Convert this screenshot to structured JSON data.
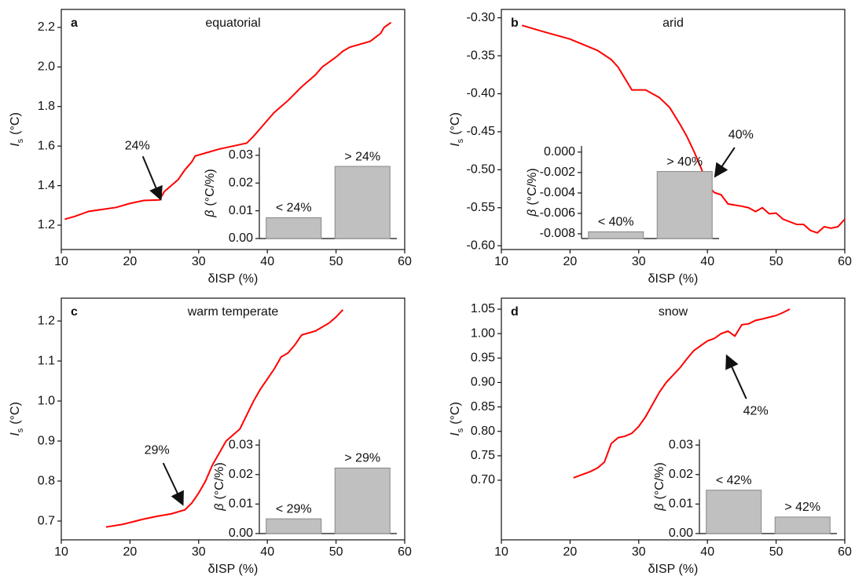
{
  "chart_data": [
    {
      "type": "line",
      "label": "a",
      "title": "equatorial",
      "x_label": "δISP (%)",
      "y_label": {
        "symbol": "I",
        "subscript": "s",
        "unit": "(°C)"
      },
      "xlim": [
        10,
        60
      ],
      "xticks": [
        10,
        20,
        30,
        40,
        50,
        60
      ],
      "ylim": [
        1.077,
        2.291
      ],
      "yticks": [
        1.2,
        1.4,
        1.6,
        1.8,
        {
          "value": 2,
          "label": "2.0"
        },
        2.2
      ],
      "color": "#ff0000",
      "x": [
        10.5,
        12,
        14,
        16,
        18,
        20,
        22,
        24.3,
        25,
        27,
        28,
        29,
        29.5,
        31,
        33,
        35,
        37,
        38,
        39,
        40,
        41,
        43,
        45,
        47,
        48,
        50,
        51,
        52,
        55,
        56.5,
        57,
        58
      ],
      "values": [
        1.23,
        1.245,
        1.27,
        1.28,
        1.29,
        1.31,
        1.325,
        1.328,
        1.37,
        1.43,
        1.48,
        1.52,
        1.55,
        1.565,
        1.585,
        1.6,
        1.615,
        1.65,
        1.69,
        1.73,
        1.77,
        1.83,
        1.9,
        1.96,
        2.0,
        2.05,
        2.08,
        2.1,
        2.13,
        2.17,
        2.2,
        2.225
      ],
      "annotation": {
        "text": "24%",
        "x": 24.5,
        "y": 1.33
      }
    },
    {
      "type": "bar",
      "y_label": {
        "symbol": "β",
        "unit": "(°C/%)"
      },
      "ylim": [
        0,
        0.0328
      ],
      "yticks": [
        {
          "value": 0,
          "label": "0.00"
        },
        {
          "value": 0.01,
          "label": "0.01"
        },
        {
          "value": 0.02,
          "label": "0.02"
        },
        {
          "value": 0.03,
          "label": "0.03"
        }
      ],
      "color": "#c0c0c0",
      "categories": [
        "< 24%",
        "> 24%"
      ],
      "values": [
        0.0075,
        0.026
      ]
    },
    {
      "type": "line",
      "label": "b",
      "title": "arid",
      "x_label": "δISP (%)",
      "y_label": {
        "symbol": "I",
        "subscript": "s",
        "unit": "(°C)"
      },
      "xlim": [
        10,
        60
      ],
      "xticks": [
        10,
        20,
        30,
        40,
        50,
        60
      ],
      "ylim": [
        -0.605,
        -0.289
      ],
      "yticks": [
        {
          "value": -0.6,
          "label": "-0.60"
        },
        {
          "value": -0.55,
          "label": "-0.55"
        },
        {
          "value": -0.5,
          "label": "-0.50"
        },
        {
          "value": -0.45,
          "label": "-0.45"
        },
        {
          "value": -0.4,
          "label": "-0.40"
        },
        {
          "value": -0.35,
          "label": "-0.35"
        },
        {
          "value": -0.3,
          "label": "-0.30"
        }
      ],
      "color": "#ff0000",
      "x": [
        13,
        16,
        20,
        24,
        26,
        27,
        29,
        31,
        33,
        34.5,
        36,
        37,
        38,
        39,
        40,
        41,
        42,
        43,
        45,
        46,
        47,
        48,
        49,
        50,
        51,
        53,
        54,
        55,
        56,
        57,
        58,
        59,
        60
      ],
      "values": [
        -0.31,
        -0.318,
        -0.328,
        -0.343,
        -0.355,
        -0.365,
        -0.395,
        -0.395,
        -0.405,
        -0.418,
        -0.44,
        -0.456,
        -0.475,
        -0.496,
        -0.52,
        -0.53,
        -0.533,
        -0.545,
        -0.548,
        -0.55,
        -0.555,
        -0.55,
        -0.558,
        -0.557,
        -0.565,
        -0.572,
        -0.572,
        -0.58,
        -0.583,
        -0.575,
        -0.577,
        -0.575,
        -0.565
      ],
      "annotation": {
        "text": "40%",
        "x": 41.1,
        "y": -0.509
      }
    },
    {
      "type": "bar",
      "y_label": {
        "symbol": "β",
        "unit": "(°C/%)"
      },
      "ylim": [
        -0.00846,
        0.0006
      ],
      "yticks": [
        {
          "value": -0.008,
          "label": "-0.008"
        },
        {
          "value": -0.006,
          "label": "-0.006"
        },
        {
          "value": -0.004,
          "label": "-0.004"
        },
        {
          "value": -0.002,
          "label": "-0.002"
        },
        {
          "value": 0,
          "label": "0.000"
        }
      ],
      "color": "#c0c0c0",
      "categories": [
        "< 40%",
        "> 40%"
      ],
      "values": [
        -0.0078,
        -0.0019
      ]
    },
    {
      "type": "line",
      "label": "c",
      "title": "warm temperate",
      "x_label": "δISP (%)",
      "y_label": {
        "symbol": "I",
        "subscript": "s",
        "unit": "(°C)"
      },
      "xlim": [
        10,
        60
      ],
      "xticks": [
        10,
        20,
        30,
        40,
        50,
        60
      ],
      "ylim": [
        0.653,
        1.257
      ],
      "yticks": [
        0.7,
        0.8,
        0.9,
        {
          "value": 1,
          "label": "1.0"
        },
        1.1,
        1.2
      ],
      "color": "#ff0000",
      "x": [
        16.5,
        19,
        22,
        24,
        26,
        28,
        29,
        30,
        31,
        32,
        33,
        34,
        35,
        36,
        37,
        38,
        39,
        40,
        41,
        42,
        43,
        44,
        45,
        46,
        47,
        48,
        49,
        50,
        51
      ],
      "values": [
        0.685,
        0.692,
        0.705,
        0.712,
        0.718,
        0.728,
        0.745,
        0.77,
        0.8,
        0.84,
        0.87,
        0.9,
        0.915,
        0.93,
        0.965,
        1.0,
        1.03,
        1.055,
        1.08,
        1.11,
        1.12,
        1.14,
        1.165,
        1.17,
        1.175,
        1.185,
        1.195,
        1.21,
        1.228
      ],
      "annotation": {
        "text": "29%",
        "x": 27.7,
        "y": 0.741
      }
    },
    {
      "type": "bar",
      "y_label": {
        "symbol": "β",
        "unit": "(°C/%)"
      },
      "ylim": [
        0,
        0.0319
      ],
      "yticks": [
        {
          "value": 0,
          "label": "0.00"
        },
        {
          "value": 0.01,
          "label": "0.01"
        },
        {
          "value": 0.02,
          "label": "0.02"
        },
        {
          "value": 0.03,
          "label": "0.03"
        }
      ],
      "color": "#c0c0c0",
      "categories": [
        "< 29%",
        "> 29%"
      ],
      "values": [
        0.005,
        0.0222
      ]
    },
    {
      "type": "line",
      "label": "d",
      "title": "snow",
      "x_label": "δISP (%)",
      "y_label": {
        "symbol": "I",
        "subscript": "s",
        "unit": "(°C)"
      },
      "xlim": [
        10,
        60
      ],
      "xticks": [
        10,
        20,
        30,
        40,
        50,
        60
      ],
      "ylim": [
        0.578,
        1.0725
      ],
      "yticks": [
        {
          "value": 0.7,
          "label": "0.70"
        },
        0.75,
        {
          "value": 0.8,
          "label": "0.80"
        },
        0.85,
        {
          "value": 0.9,
          "label": "0.90"
        },
        0.95,
        {
          "value": 1,
          "label": "1.00"
        },
        1.05
      ],
      "color": "#ff0000",
      "x": [
        20.5,
        23,
        24,
        25,
        26,
        27,
        28,
        29,
        30,
        31,
        32,
        33,
        34,
        35,
        36,
        37,
        38,
        39,
        40,
        41,
        42,
        43,
        44,
        45,
        46,
        47,
        48,
        50,
        51,
        52
      ],
      "values": [
        0.705,
        0.718,
        0.725,
        0.737,
        0.775,
        0.787,
        0.79,
        0.796,
        0.81,
        0.83,
        0.855,
        0.88,
        0.9,
        0.915,
        0.93,
        0.948,
        0.965,
        0.975,
        0.985,
        0.99,
        1.0,
        1.005,
        0.995,
        1.018,
        1.02,
        1.027,
        1.03,
        1.037,
        1.043,
        1.05
      ],
      "annotation": {
        "text": "42%",
        "x": 42.8,
        "y": 0.955
      }
    },
    {
      "type": "bar",
      "y_label": {
        "symbol": "β",
        "unit": "(°C/%)"
      },
      "ylim": [
        0,
        0.0319
      ],
      "yticks": [
        {
          "value": 0,
          "label": "0.00"
        },
        {
          "value": 0.01,
          "label": "0.01"
        },
        {
          "value": 0.02,
          "label": "0.02"
        },
        {
          "value": 0.03,
          "label": "0.03"
        }
      ],
      "color": "#c0c0c0",
      "categories": [
        "< 42%",
        "> 42%"
      ],
      "values": [
        0.0147,
        0.0056
      ]
    }
  ]
}
